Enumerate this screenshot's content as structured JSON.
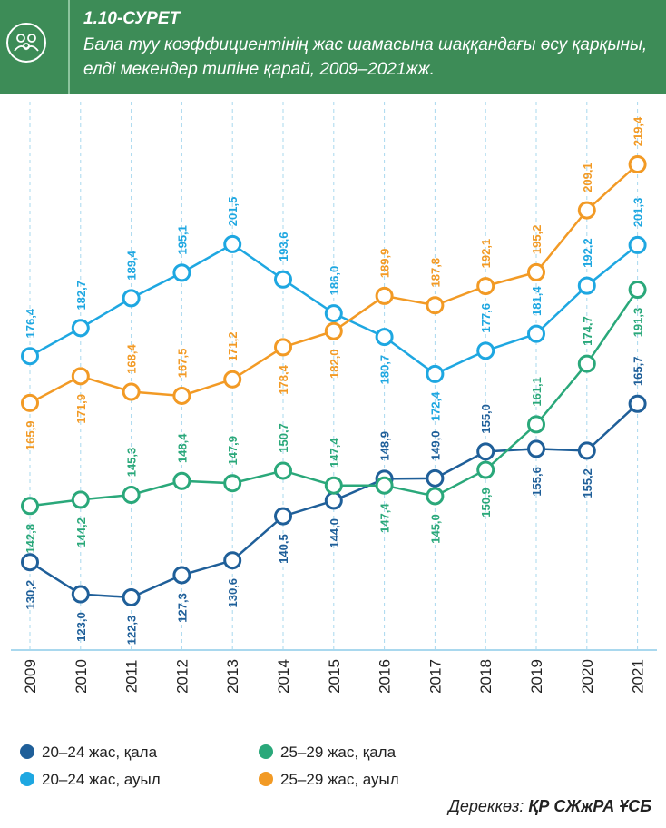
{
  "chart_data": {
    "type": "line",
    "title": "1.10-СУРЕТ",
    "subtitle": "Бала туу коэффициентінің жас шамасына шаққандағы өсу қарқыны, елді мекендер типіне қарай, 2009–2021жж.",
    "categories": [
      "2009",
      "2010",
      "2011",
      "2012",
      "2013",
      "2014",
      "2015",
      "2016",
      "2017",
      "2018",
      "2019",
      "2020",
      "2021"
    ],
    "series": [
      {
        "name": "20–24 жас, қала",
        "color": "#1f5f99",
        "values": [
          130.2,
          123.0,
          122.3,
          127.3,
          130.6,
          140.5,
          144.0,
          148.9,
          149.0,
          155.0,
          155.6,
          155.2,
          165.7
        ],
        "value_labels": [
          "130,2",
          "123,0",
          "122,3",
          "127,3",
          "130,6",
          "140,5",
          "144,0",
          "148,9",
          "149,0",
          "155,0",
          "155,6",
          "155,2",
          "165,7"
        ]
      },
      {
        "name": "20–24 жас, ауыл",
        "color": "#1ea7e1",
        "values": [
          176.4,
          182.7,
          189.4,
          195.1,
          201.5,
          193.6,
          186.0,
          180.7,
          172.4,
          177.6,
          181.4,
          192.2,
          201.3
        ],
        "value_labels": [
          "176,4",
          "182,7",
          "189,4",
          "195,1",
          "201,5",
          "193,6",
          "186,0",
          "180,7",
          "172,4",
          "177,6",
          "181,4",
          "192,2",
          "201,3"
        ]
      },
      {
        "name": "25–29 жас, қала",
        "color": "#2aa87a",
        "values": [
          142.8,
          144.2,
          145.3,
          148.4,
          147.9,
          150.7,
          147.4,
          147.4,
          145.0,
          150.9,
          161.1,
          174.7,
          191.3
        ],
        "value_labels": [
          "142,8",
          "144,2",
          "145,3",
          "148,4",
          "147,9",
          "150,7",
          "147,4",
          "147,4",
          "145,0",
          "150,9",
          "161,1",
          "174,7",
          "191,3"
        ]
      },
      {
        "name": "25–29 жас, ауыл",
        "color": "#f29a25",
        "values": [
          165.9,
          171.9,
          168.4,
          167.5,
          171.2,
          178.4,
          182.0,
          189.9,
          187.8,
          192.1,
          195.2,
          209.1,
          219.4
        ],
        "value_labels": [
          "165,9",
          "171,9",
          "168,4",
          "167,5",
          "171,2",
          "178,4",
          "182,0",
          "189,9",
          "187,8",
          "192,1",
          "195,2",
          "209,1",
          "219,4"
        ]
      }
    ],
    "source_label": "Дереккөз:",
    "source": "ҚР СЖжРА ҰСБ"
  }
}
